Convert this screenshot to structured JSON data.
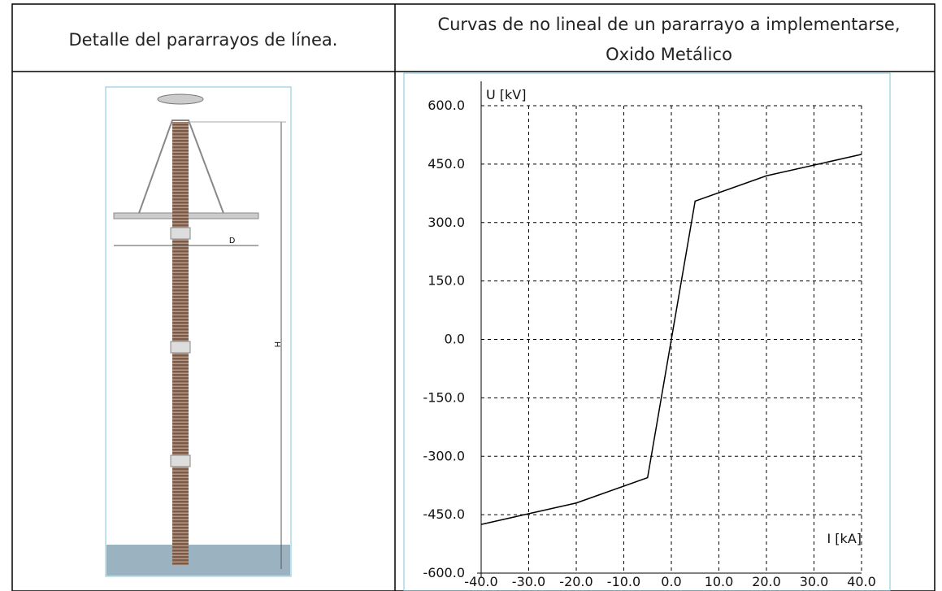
{
  "table": {
    "headers": [
      "Detalle del pararrayos de línea.",
      [
        "Curvas de no lineal de un pararrayo a implementarse,",
        "Oxido Metálico"
      ]
    ]
  },
  "drawing": {
    "labels": [
      "D",
      "H"
    ]
  },
  "chart_data": {
    "type": "line",
    "x_label": "I [kA]",
    "y_label": "U [kV]",
    "x": [
      -40,
      -20,
      -5,
      5,
      20,
      40
    ],
    "series": [
      {
        "color": "#000000",
        "values": [
          -475,
          -420,
          -355,
          355,
          420,
          475
        ]
      }
    ],
    "xlim": [
      -40,
      40
    ],
    "xticks": [
      {
        "value": -40,
        "label": "-40.0"
      },
      {
        "value": -30,
        "label": "-30.0"
      },
      {
        "value": -20,
        "label": "-20.0"
      },
      {
        "value": -10,
        "label": "-10.0"
      },
      {
        "value": 0,
        "label": "0.0"
      },
      {
        "value": 10,
        "label": "10.0"
      },
      {
        "value": 20,
        "label": "20.0"
      },
      {
        "value": 30,
        "label": "30.0"
      },
      {
        "value": 40,
        "label": "40.0"
      }
    ],
    "ylim": [
      -600,
      600
    ],
    "yticks": [
      {
        "value": -600,
        "label": "-600.0"
      },
      {
        "value": -450,
        "label": "-450.0"
      },
      {
        "value": -300,
        "label": "-300.0"
      },
      {
        "value": -150,
        "label": "-150.0"
      },
      {
        "value": 0,
        "label": "0.0"
      },
      {
        "value": 150,
        "label": "150.0"
      },
      {
        "value": 300,
        "label": "300.0"
      },
      {
        "value": 450,
        "label": "450.0"
      },
      {
        "value": 600,
        "label": "600.0"
      }
    ],
    "grid": true
  }
}
